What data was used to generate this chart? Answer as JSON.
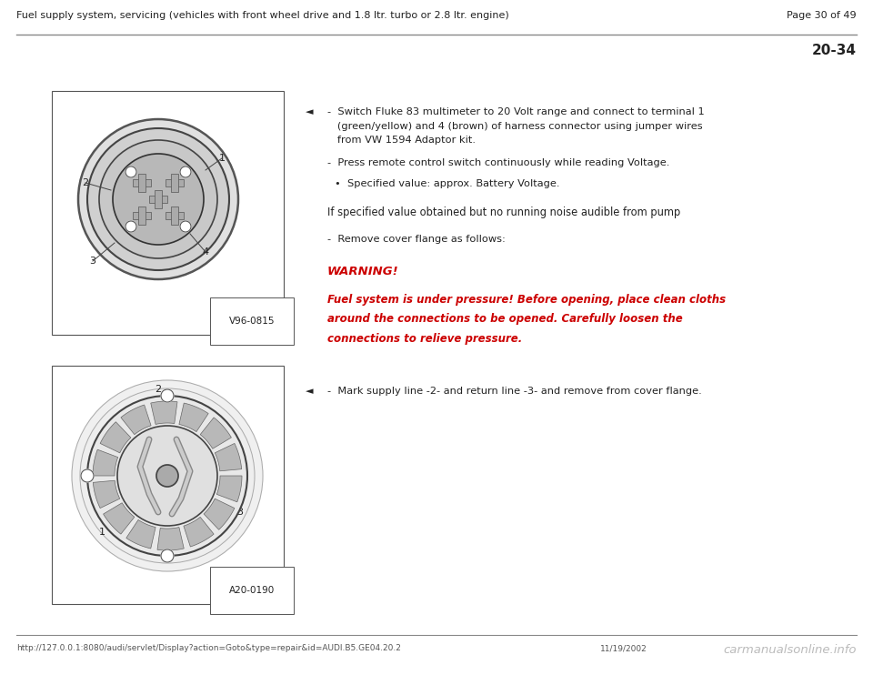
{
  "page_header": "Fuel supply system, servicing (vehicles with front wheel drive and 1.8 ltr. turbo or 2.8 ltr. engine)",
  "page_number": "Page 30 of 49",
  "section_number": "20-34",
  "bg_color": "#ffffff",
  "header_line_color": "#888888",
  "footer_line_color": "#888888",
  "footer_url": "http://127.0.0.1:8080/audi/servlet/Display?action=Goto&type=repair&id=AUDI.B5.GE04.20.2",
  "footer_date": "11/19/2002",
  "footer_watermark": "carmanualsonline.info",
  "image1_label": "V96-0815",
  "image2_label": "A20-0190",
  "bullet_arrow": "◄",
  "text_color": "#222222",
  "red_color": "#cc0000",
  "line1": "-  Switch Fluke 83 multimeter to 20 Volt range and connect to terminal 1",
  "line2": "   (green/yellow) and 4 (brown) of harness connector using jumper wires",
  "line3": "   from VW 1594 Adaptor kit.",
  "line4": "-  Press remote control switch continuously while reading Voltage.",
  "line5": "•  Specified value: approx. Battery Voltage.",
  "middle_text": "If specified value obtained but no running noise audible from pump",
  "remove_text": "-  Remove cover flange as follows:",
  "warning_title": "WARNING!",
  "warning_line1": "Fuel system is under pressure! Before opening, place clean cloths",
  "warning_line2": "around the connections to be opened. Carefully loosen the",
  "warning_line3": "connections to relieve pressure.",
  "instruction2": "-  Mark supply line -2- and return line -3- and remove from cover flange."
}
